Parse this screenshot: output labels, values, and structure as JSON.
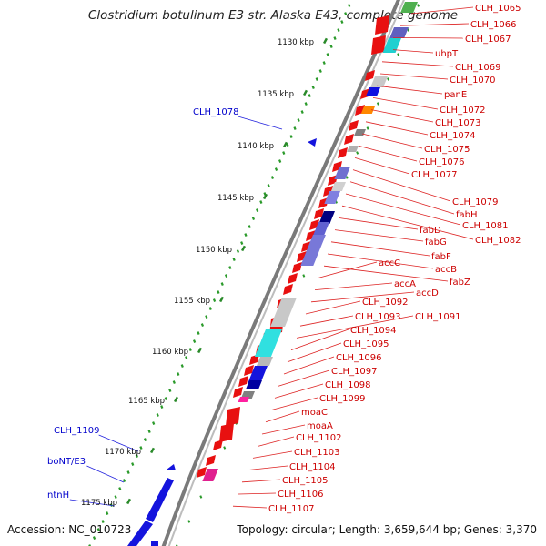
{
  "title": "Clostridium botulinum E3 str. Alaska E43, complete genome",
  "footer": {
    "accession": "Accession: NC_010723",
    "topology": "Topology: circular; Length: 3,659,644 bp; Genes: 3,370"
  },
  "colors": {
    "label_red": "#cc0000",
    "label_blue": "#0000cc",
    "gene_red": "#e81010",
    "gene_blue": "#1414dd"
  },
  "ticks": [
    "1130 kbp",
    "1135 kbp",
    "1140 kbp",
    "1145 kbp",
    "1150 kbp",
    "1155 kbp",
    "1160 kbp",
    "1165 kbp",
    "1170 kbp",
    "1175 kbp"
  ],
  "right_labels": [
    "CLH_1065",
    "CLH_1066",
    "CLH_1067",
    "uhpT",
    "CLH_1069",
    "CLH_1070",
    "panE",
    "CLH_1072",
    "CLH_1073",
    "CLH_1074",
    "CLH_1075",
    "CLH_1076",
    "CLH_1077",
    "CLH_1079",
    "fabH",
    "CLH_1081",
    "CLH_1082",
    "fabD",
    "fabG",
    "fabF",
    "accB",
    "fabZ",
    "accC",
    "accA",
    "accD",
    "CLH_1092",
    "CLH_1093",
    "CLH_1091",
    "CLH_1094",
    "CLH_1095",
    "CLH_1096",
    "CLH_1097",
    "CLH_1098",
    "CLH_1099",
    "moaC",
    "moaA",
    "CLH_1102",
    "CLH_1103",
    "CLH_1104",
    "CLH_1105",
    "CLH_1106",
    "CLH_1107"
  ],
  "left_labels": [
    "CLH_1078",
    "CLH_1109",
    "boNT/E3",
    "ntnH"
  ]
}
